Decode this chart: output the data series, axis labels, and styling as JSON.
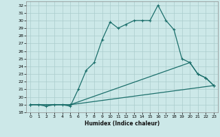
{
  "title": "",
  "xlabel": "Humidex (Indice chaleur)",
  "xlim": [
    -0.5,
    23.5
  ],
  "ylim": [
    18,
    32.5
  ],
  "xticks": [
    0,
    1,
    2,
    3,
    4,
    5,
    6,
    7,
    8,
    9,
    10,
    11,
    12,
    13,
    14,
    15,
    16,
    17,
    18,
    19,
    20,
    21,
    22,
    23
  ],
  "yticks": [
    18,
    19,
    20,
    21,
    22,
    23,
    24,
    25,
    26,
    27,
    28,
    29,
    30,
    31,
    32
  ],
  "bg_color": "#cce8e8",
  "grid_color": "#aacccc",
  "line_color": "#1a6e6a",
  "series_main": {
    "x": [
      0,
      1,
      2,
      3,
      4,
      5,
      6,
      7,
      8,
      9,
      10,
      11,
      12,
      13,
      14,
      15,
      16,
      17,
      18,
      19,
      20,
      21,
      22,
      23
    ],
    "y": [
      19,
      19,
      18.8,
      19,
      19,
      18.8,
      21,
      23.5,
      24.5,
      27.5,
      29.8,
      29,
      29.5,
      30,
      30,
      30,
      32,
      30,
      28.8,
      25,
      24.5,
      23,
      22.5,
      21.5
    ]
  },
  "series_line2": {
    "x": [
      0,
      5,
      23
    ],
    "y": [
      19,
      19,
      21.5
    ]
  },
  "series_line3": {
    "x": [
      0,
      5,
      20,
      21,
      22,
      23
    ],
    "y": [
      19,
      19,
      24.5,
      23,
      22.5,
      21.5
    ]
  }
}
